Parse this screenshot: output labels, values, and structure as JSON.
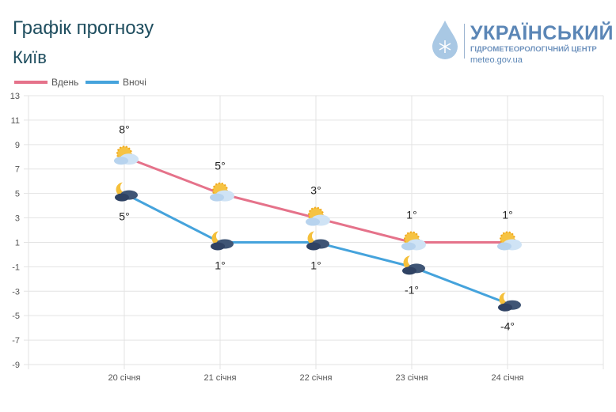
{
  "header": {
    "title": "Графік прогнозу",
    "city": "Київ"
  },
  "logo": {
    "name": "УКРАЇНСЬКИЙ",
    "subtitle": "ГІДРОМЕТЕОРОЛОГІЧНИЙ ЦЕНТР",
    "url": "meteo.gov.ua"
  },
  "chart_data": {
    "type": "line",
    "categories": [
      "20 січня",
      "21 січня",
      "22 січня",
      "23 січня",
      "24 січня"
    ],
    "series": [
      {
        "name": "Вдень",
        "color": "#e5728a",
        "values": [
          8,
          5,
          3,
          1,
          1
        ],
        "labels": [
          "8°",
          "5°",
          "3°",
          "1°",
          "1°"
        ],
        "icon": "sun-cloud-icon"
      },
      {
        "name": "Вночі",
        "color": "#45a3dc",
        "values": [
          5,
          1,
          1,
          -1,
          -4
        ],
        "labels": [
          "5°",
          "1°",
          "1°",
          "-1°",
          "-4°"
        ],
        "icon": "moon-cloud-icon"
      }
    ],
    "ylim": [
      -9,
      13
    ],
    "yticks": [
      13,
      11,
      9,
      7,
      5,
      3,
      1,
      -1,
      -3,
      -5,
      -7,
      -9
    ],
    "grid": true,
    "legend": "top-left"
  }
}
